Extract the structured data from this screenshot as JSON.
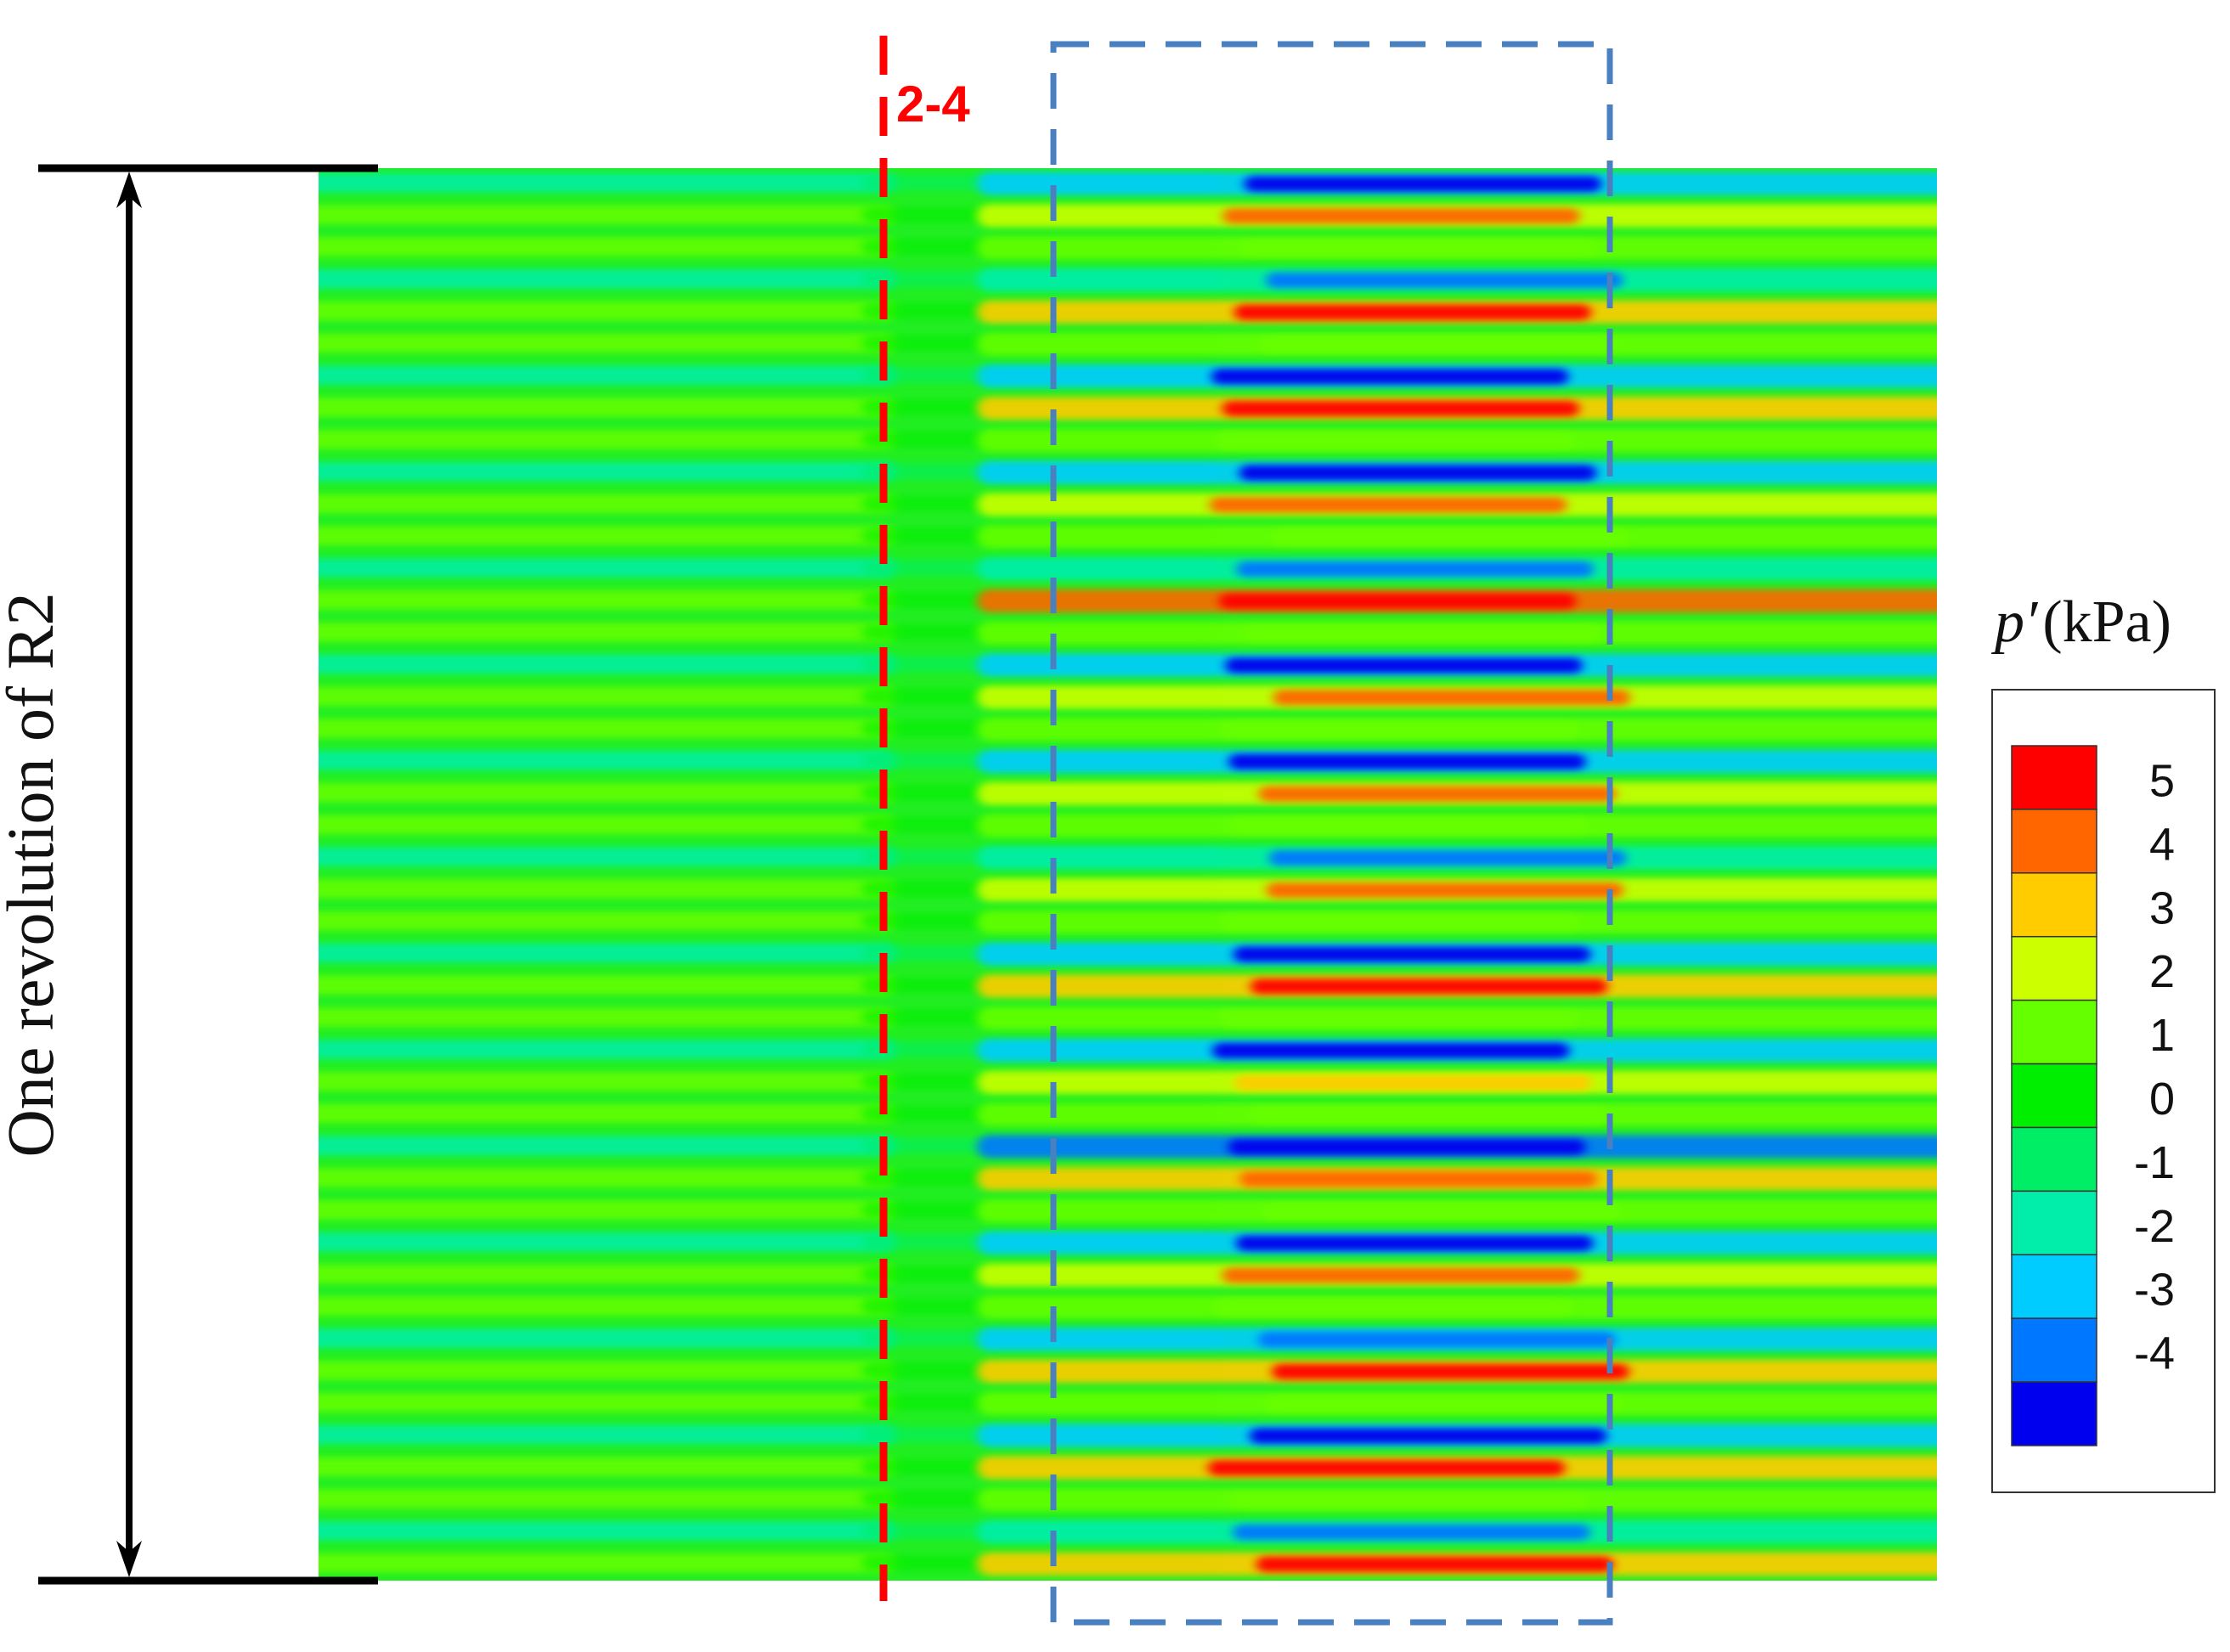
{
  "chart_data": {
    "type": "heatmap",
    "title": "",
    "xlabel": "",
    "ylabel": "One revolution of R2",
    "colorbar": {
      "title_symbol": "p′",
      "title_unit": "(kPa)",
      "tick_labels": [
        "5",
        "4",
        "3",
        "2",
        "1",
        "0",
        "-1",
        "-2",
        "-3",
        "-4"
      ],
      "levels": [
        {
          "value": 5,
          "color": "#ff0000"
        },
        {
          "value": 4,
          "color": "#ff6600"
        },
        {
          "value": 3,
          "color": "#ffcc00"
        },
        {
          "value": 2,
          "color": "#ccff00"
        },
        {
          "value": 1,
          "color": "#66ff00"
        },
        {
          "value": 0,
          "color": "#00ee00"
        },
        {
          "value": -1,
          "color": "#00ee66"
        },
        {
          "value": -2,
          "color": "#00eeaa"
        },
        {
          "value": -3,
          "color": "#00ccff"
        },
        {
          "value": -4,
          "color": "#0077ff"
        },
        {
          "value": -5,
          "color": "#0000ee"
        }
      ],
      "range": [
        -5,
        5
      ]
    },
    "annotations": {
      "marker_label": "2-4",
      "marker_color": "#ff0000",
      "box_color": "#4a7fc0"
    },
    "band_count": 44
  }
}
